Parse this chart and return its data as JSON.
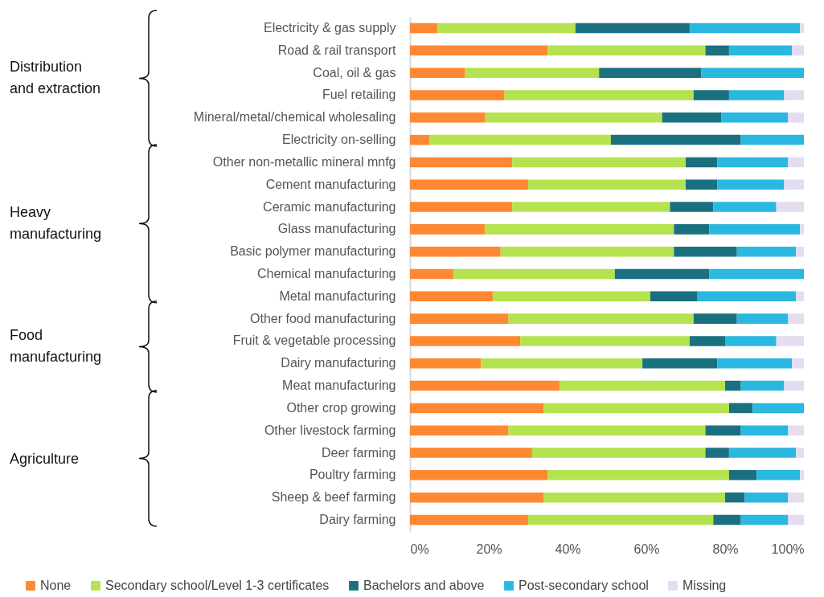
{
  "chart_data": {
    "type": "bar",
    "orientation": "horizontal",
    "stacked": true,
    "categories": [
      "Electricity & gas supply",
      "Road & rail transport",
      "Coal, oil & gas",
      "Fuel retailing",
      "Mineral/metal/chemical wholesaling",
      "Electricity on-selling",
      "Other non-metallic mineral mnfg",
      "Cement manufacturing",
      "Ceramic manufacturing",
      "Glass manufacturing",
      "Basic polymer manufacturing",
      "Chemical manufacturing",
      "Metal manufacturing",
      "Other food manufacturing",
      "Fruit & vegetable processing",
      "Dairy manufacturing",
      "Meat manufacturing",
      "Other crop growing",
      "Other livestock farming",
      "Deer farming",
      "Poultry farming",
      "Sheep & beef farming",
      "Dairy farming"
    ],
    "series": [
      {
        "name": "None",
        "color": "#ff8833",
        "values": [
          7,
          35,
          14,
          24,
          19,
          5,
          26,
          30,
          26,
          19,
          23,
          11,
          21,
          25,
          28,
          18,
          38,
          34,
          25,
          31,
          35,
          34,
          30
        ]
      },
      {
        "name": "Secondary school/Level 1-3 certificates",
        "color": "#b5e24f",
        "values": [
          35,
          40,
          34,
          48,
          45,
          46,
          44,
          40,
          40,
          48,
          44,
          41,
          40,
          47,
          43,
          41,
          42,
          47,
          50,
          44,
          46,
          46,
          47
        ]
      },
      {
        "name": "Bachelors and above",
        "color": "#1b7080",
        "values": [
          29,
          6,
          26,
          9,
          15,
          33,
          8,
          8,
          11,
          9,
          16,
          24,
          12,
          11,
          9,
          19,
          4,
          6,
          9,
          6,
          7,
          5,
          7
        ]
      },
      {
        "name": "Post-secondary school",
        "color": "#2bb8e0",
        "values": [
          28,
          16,
          26,
          14,
          17,
          16,
          18,
          17,
          16,
          23,
          15,
          24,
          25,
          13,
          13,
          19,
          11,
          13,
          12,
          17,
          11,
          11,
          12
        ]
      },
      {
        "name": "Missing",
        "color": "#e6dcf2",
        "values": [
          1,
          3,
          0,
          5,
          4,
          0,
          4,
          5,
          7,
          1,
          2,
          0,
          2,
          4,
          7,
          3,
          5,
          0,
          4,
          2,
          1,
          4,
          4
        ]
      }
    ],
    "xlim": [
      0,
      100
    ],
    "xticks": [
      {
        "value": 0,
        "label": "0%"
      },
      {
        "value": 20,
        "label": "20%"
      },
      {
        "value": 40,
        "label": "40%"
      },
      {
        "value": 60,
        "label": "60%"
      },
      {
        "value": 80,
        "label": "80%"
      },
      {
        "value": 100,
        "label": "100%"
      }
    ],
    "legend": "bottom",
    "grid": false,
    "annotations": [
      "Distribution and extraction",
      "Heavy manufacturing",
      "Food manufacturing",
      "Agriculture"
    ]
  }
}
